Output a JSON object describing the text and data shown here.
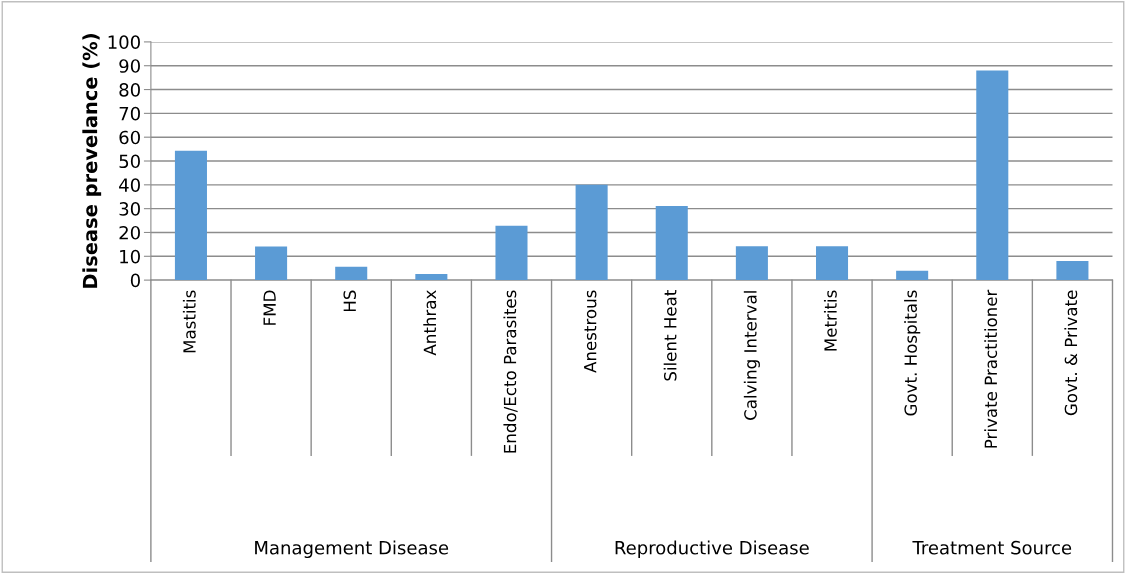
{
  "chart_data": {
    "type": "bar",
    "ylabel": "Disease prevelance (%)",
    "categories": [
      "Mastitis",
      "FMD",
      "HS",
      "Anthrax",
      "Endo/Ecto Parasites",
      "Anestrous",
      "Silent Heat",
      "Calving Interval",
      "Metritis",
      "Govt. Hospitals",
      "Private Practitioner",
      "Govt. & Private"
    ],
    "values": [
      54.3,
      14.1,
      5.6,
      2.6,
      22.8,
      40,
      31.1,
      14.2,
      14.2,
      3.9,
      88,
      8
    ],
    "color": "#5b9bd5",
    "ylim": [
      0,
      100
    ],
    "yticks": [
      0,
      10,
      20,
      30,
      40,
      50,
      60,
      70,
      80,
      90,
      100
    ],
    "grid": "y",
    "annotations": [
      "Management Disease",
      "Reproductive Disease",
      "Treatment Source"
    ]
  }
}
